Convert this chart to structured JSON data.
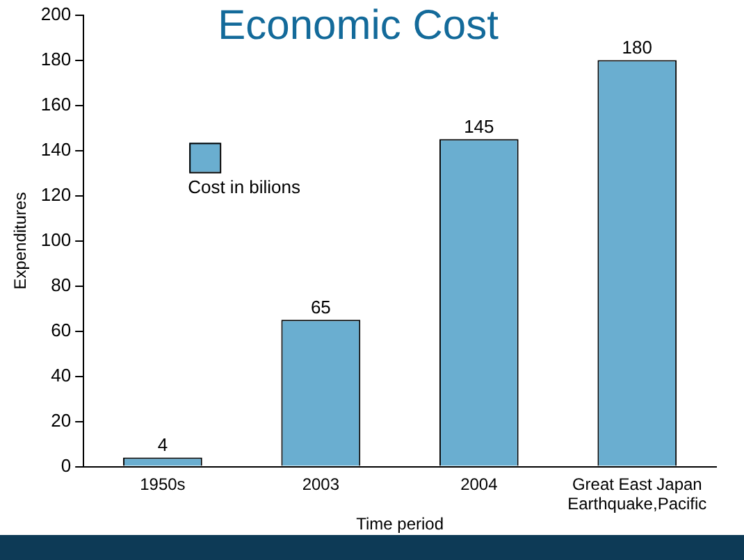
{
  "chart_data": {
    "type": "bar",
    "title": "Economic Cost",
    "xlabel": "Time period",
    "ylabel": "Expenditures",
    "categories": [
      "1950s",
      "2003",
      "2004",
      "Great East Japan Earthquake,Pacific"
    ],
    "series": [
      {
        "name": "Cost in bilions",
        "color": "#6aaed0",
        "values": [
          4,
          65,
          145,
          180
        ]
      }
    ],
    "ylim": [
      0,
      200
    ],
    "yticks": [
      0,
      20,
      40,
      60,
      80,
      100,
      120,
      140,
      160,
      180,
      200
    ],
    "grid": false,
    "legend": "top left",
    "data_labels": true
  }
}
